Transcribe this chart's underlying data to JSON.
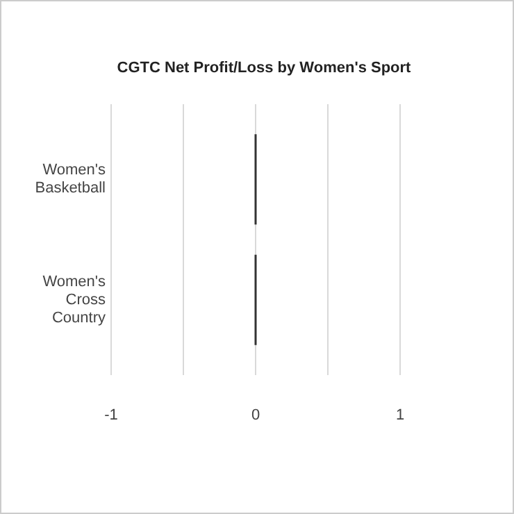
{
  "chart_data": {
    "type": "bar",
    "orientation": "horizontal",
    "title": "CGTC Net Profit/Loss by Women's Sport",
    "categories": [
      "Women's Basketball",
      "Women's Cross Country"
    ],
    "values": [
      0,
      0
    ],
    "color": "#333333",
    "xlim": [
      -1,
      1
    ],
    "xticks": [
      -1,
      {
        "value": -0.5,
        "label": null
      },
      0,
      {
        "value": 0.5,
        "label": null
      },
      1
    ],
    "grid": "x"
  }
}
